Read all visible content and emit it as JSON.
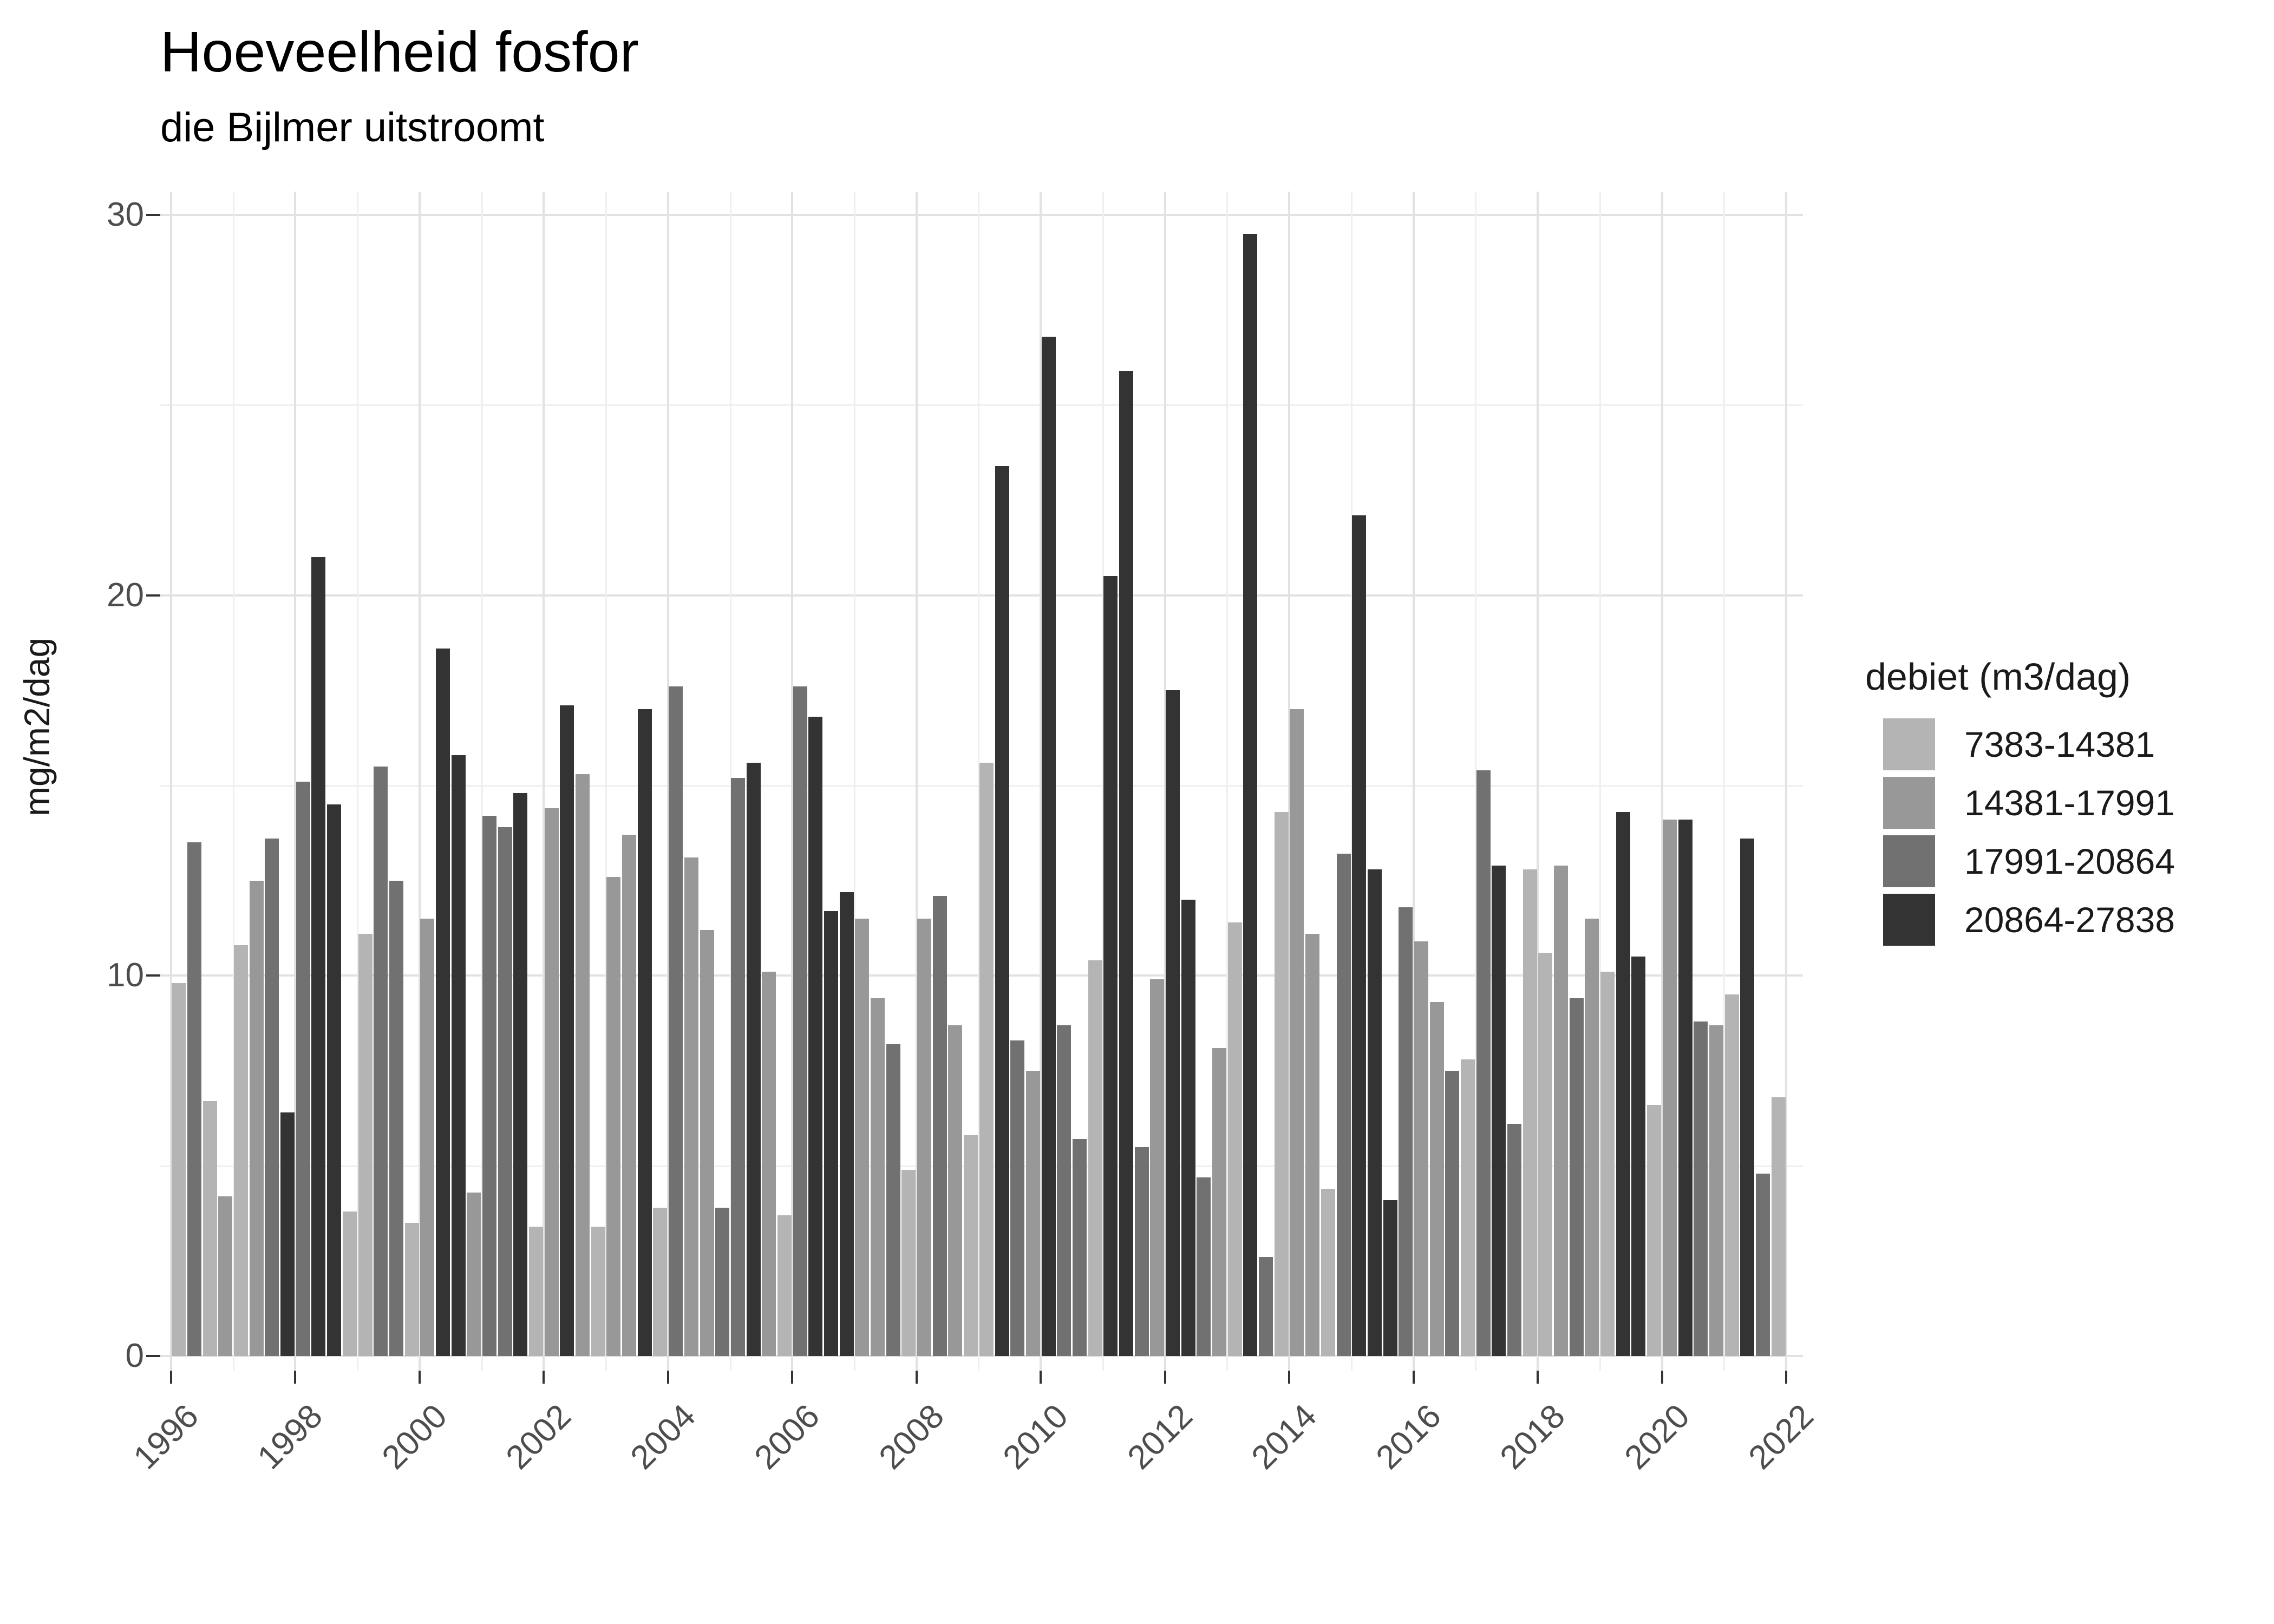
{
  "title": "Hoeveelheid fosfor",
  "subtitle": "die Bijlmer uitstroomt",
  "y_axis": {
    "label": "mg/m2/dag",
    "major_ticks": [
      0,
      10,
      20,
      30
    ],
    "minor_ticks": [
      5,
      15,
      25
    ]
  },
  "x_axis": {
    "tick_years": [
      1996,
      1998,
      2000,
      2002,
      2004,
      2006,
      2008,
      2010,
      2012,
      2014,
      2016,
      2018,
      2020,
      2022
    ],
    "minor_years": [
      1997,
      1999,
      2001,
      2003,
      2005,
      2007,
      2009,
      2011,
      2013,
      2015,
      2017,
      2019,
      2021
    ]
  },
  "legend": {
    "title": "debiet (m3/dag)",
    "items": [
      {
        "label": "7383-14381",
        "color": "#b4b4b4"
      },
      {
        "label": "14381-17991",
        "color": "#989898"
      },
      {
        "label": "17991-20864",
        "color": "#717171"
      },
      {
        "label": "20864-27838",
        "color": "#333333"
      }
    ]
  },
  "chart_data": {
    "type": "bar",
    "title": "Hoeveelheid fosfor",
    "subtitle": "die Bijlmer uitstroomt",
    "xlabel": "",
    "ylabel": "mg/m2/dag",
    "ylim": [
      0,
      30
    ],
    "grid": true,
    "legend_position": "right",
    "x_unit": "quarter",
    "bin_labels": [
      "7383-14381",
      "14381-17991",
      "17991-20864",
      "20864-27838"
    ],
    "bin_colors": [
      "#b4b4b4",
      "#989898",
      "#717171",
      "#333333"
    ],
    "bars_format": "[year, quarter, value_mg_m2_dag, debiet_bin_index]",
    "bars": [
      [
        1996,
        3,
        9.8,
        0
      ],
      [
        1996,
        4,
        13.5,
        2
      ],
      [
        1997,
        1,
        6.7,
        0
      ],
      [
        1997,
        2,
        4.2,
        1
      ],
      [
        1997,
        3,
        10.8,
        0
      ],
      [
        1997,
        4,
        12.5,
        1
      ],
      [
        1998,
        1,
        13.6,
        2
      ],
      [
        1998,
        2,
        6.4,
        3
      ],
      [
        1998,
        3,
        15.1,
        2
      ],
      [
        1998,
        4,
        21.0,
        3
      ],
      [
        1999,
        1,
        14.5,
        3
      ],
      [
        1999,
        2,
        3.8,
        0
      ],
      [
        1999,
        3,
        11.1,
        0
      ],
      [
        1999,
        4,
        15.5,
        2
      ],
      [
        2000,
        1,
        12.5,
        2
      ],
      [
        2000,
        2,
        3.5,
        0
      ],
      [
        2000,
        3,
        11.5,
        1
      ],
      [
        2000,
        4,
        18.6,
        3
      ],
      [
        2001,
        1,
        15.8,
        3
      ],
      [
        2001,
        2,
        4.3,
        1
      ],
      [
        2001,
        3,
        14.2,
        2
      ],
      [
        2001,
        4,
        13.9,
        2
      ],
      [
        2002,
        1,
        14.8,
        3
      ],
      [
        2002,
        2,
        3.4,
        0
      ],
      [
        2002,
        3,
        14.4,
        1
      ],
      [
        2002,
        4,
        17.1,
        3
      ],
      [
        2003,
        1,
        15.3,
        1
      ],
      [
        2003,
        2,
        3.4,
        0
      ],
      [
        2003,
        3,
        12.6,
        1
      ],
      [
        2003,
        4,
        13.7,
        1
      ],
      [
        2004,
        1,
        17.0,
        3
      ],
      [
        2004,
        2,
        3.9,
        0
      ],
      [
        2004,
        3,
        17.6,
        2
      ],
      [
        2004,
        4,
        13.1,
        1
      ],
      [
        2005,
        1,
        11.2,
        1
      ],
      [
        2005,
        2,
        3.9,
        2
      ],
      [
        2005,
        3,
        15.2,
        2
      ],
      [
        2005,
        4,
        15.6,
        3
      ],
      [
        2006,
        1,
        10.1,
        1
      ],
      [
        2006,
        2,
        3.7,
        0
      ],
      [
        2006,
        3,
        17.6,
        2
      ],
      [
        2006,
        4,
        16.8,
        3
      ],
      [
        2007,
        1,
        11.7,
        3
      ],
      [
        2007,
        2,
        12.2,
        3
      ],
      [
        2007,
        3,
        11.5,
        1
      ],
      [
        2007,
        4,
        9.4,
        1
      ],
      [
        2008,
        1,
        8.2,
        2
      ],
      [
        2008,
        2,
        4.9,
        0
      ],
      [
        2008,
        3,
        11.5,
        1
      ],
      [
        2008,
        4,
        12.1,
        2
      ],
      [
        2009,
        1,
        8.7,
        1
      ],
      [
        2009,
        2,
        5.8,
        0
      ],
      [
        2009,
        3,
        15.6,
        0
      ],
      [
        2009,
        4,
        23.4,
        3
      ],
      [
        2010,
        1,
        8.3,
        2
      ],
      [
        2010,
        2,
        7.5,
        1
      ],
      [
        2010,
        3,
        26.8,
        3
      ],
      [
        2010,
        4,
        8.7,
        2
      ],
      [
        2011,
        1,
        5.7,
        2
      ],
      [
        2011,
        2,
        10.4,
        0
      ],
      [
        2011,
        3,
        20.5,
        3
      ],
      [
        2011,
        4,
        25.9,
        3
      ],
      [
        2012,
        1,
        5.5,
        2
      ],
      [
        2012,
        2,
        9.9,
        1
      ],
      [
        2012,
        3,
        17.5,
        3
      ],
      [
        2012,
        4,
        12.0,
        3
      ],
      [
        2013,
        1,
        4.7,
        2
      ],
      [
        2013,
        2,
        8.1,
        1
      ],
      [
        2013,
        3,
        11.4,
        0
      ],
      [
        2013,
        4,
        29.5,
        3
      ],
      [
        2014,
        1,
        2.6,
        2
      ],
      [
        2014,
        2,
        14.3,
        0
      ],
      [
        2014,
        3,
        17.0,
        1
      ],
      [
        2014,
        4,
        11.1,
        1
      ],
      [
        2015,
        1,
        4.4,
        0
      ],
      [
        2015,
        2,
        13.2,
        2
      ],
      [
        2015,
        3,
        22.1,
        3
      ],
      [
        2015,
        4,
        12.8,
        3
      ],
      [
        2016,
        1,
        4.1,
        3
      ],
      [
        2016,
        2,
        11.8,
        2
      ],
      [
        2016,
        3,
        10.9,
        1
      ],
      [
        2016,
        4,
        9.3,
        1
      ],
      [
        2017,
        1,
        7.5,
        2
      ],
      [
        2017,
        2,
        7.8,
        0
      ],
      [
        2017,
        3,
        15.4,
        2
      ],
      [
        2017,
        4,
        12.9,
        3
      ],
      [
        2018,
        1,
        6.1,
        2
      ],
      [
        2018,
        2,
        12.8,
        0
      ],
      [
        2018,
        3,
        10.6,
        0
      ],
      [
        2018,
        4,
        12.9,
        1
      ],
      [
        2019,
        1,
        9.4,
        2
      ],
      [
        2019,
        2,
        11.5,
        1
      ],
      [
        2019,
        3,
        10.1,
        0
      ],
      [
        2019,
        4,
        14.3,
        3
      ],
      [
        2020,
        1,
        10.5,
        3
      ],
      [
        2020,
        2,
        6.6,
        0
      ],
      [
        2020,
        3,
        14.1,
        1
      ],
      [
        2020,
        4,
        14.1,
        3
      ],
      [
        2021,
        1,
        8.8,
        2
      ],
      [
        2021,
        2,
        8.7,
        1
      ],
      [
        2021,
        3,
        9.5,
        0
      ],
      [
        2021,
        4,
        13.6,
        3
      ],
      [
        2022,
        1,
        4.8,
        2
      ],
      [
        2022,
        2,
        6.8,
        0
      ]
    ]
  }
}
